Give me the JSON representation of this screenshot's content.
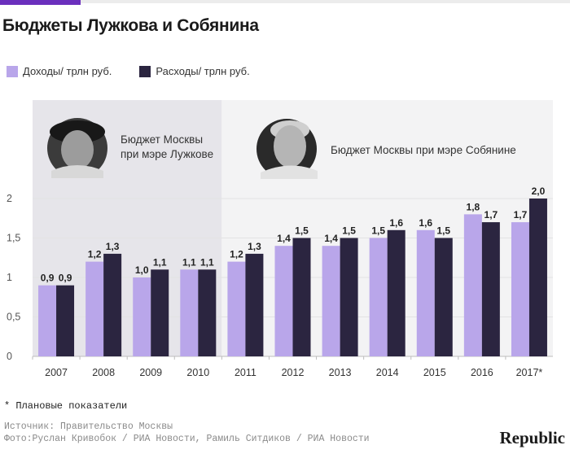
{
  "header": {
    "title": "Бюджеты Лужкова и Собянина"
  },
  "legend": {
    "income_label": "Доходы/ трлн руб.",
    "expense_label": "Расходы/ трлн руб."
  },
  "colors": {
    "income": "#b9a6ea",
    "expense": "#2b2540",
    "accent": "#6b2fbd",
    "panel_luzhkov": "#e6e5ea",
    "panel_sobyanin": "#f3f3f4"
  },
  "chart_data": {
    "type": "bar",
    "title": "Бюджеты Лужкова и Собянина",
    "categories": [
      "2007",
      "2008",
      "2009",
      "2010",
      "2011",
      "2012",
      "2013",
      "2014",
      "2015",
      "2016",
      "2017*"
    ],
    "series": [
      {
        "name": "Доходы/ трлн руб.",
        "values": [
          0.9,
          1.2,
          1.0,
          1.1,
          1.2,
          1.4,
          1.4,
          1.5,
          1.6,
          1.8,
          1.7
        ],
        "labels": [
          "0,9",
          "1,2",
          "1,0",
          "1,1",
          "1,2",
          "1,4",
          "1,4",
          "1,5",
          "1,6",
          "1,8",
          "1,7"
        ]
      },
      {
        "name": "Расходы/ трлн руб.",
        "values": [
          0.9,
          1.3,
          1.1,
          1.1,
          1.3,
          1.5,
          1.5,
          1.6,
          1.5,
          1.7,
          2.0
        ],
        "labels": [
          "0,9",
          "1,3",
          "1,1",
          "1,1",
          "1,3",
          "1,5",
          "1,5",
          "1,6",
          "1,5",
          "1,7",
          "2,0"
        ]
      }
    ],
    "ylim": [
      0,
      2
    ],
    "yticks": [
      {
        "value": 0,
        "label": "0"
      },
      {
        "value": 0.5,
        "label": "0,5"
      },
      {
        "value": 1,
        "label": "1"
      },
      {
        "value": 1.5,
        "label": "1,5"
      },
      {
        "value": 2,
        "label": "2"
      }
    ],
    "grid": true,
    "legend_position": "top-left",
    "annotations": {
      "luzhkov_period": {
        "categories": [
          "2007",
          "2008",
          "2009",
          "2010"
        ],
        "line1": "Бюджет Москвы",
        "line2": "при мэре Лужкове"
      },
      "sobyanin_period": {
        "categories": [
          "2011",
          "2012",
          "2013",
          "2014",
          "2015",
          "2016",
          "2017*"
        ],
        "line1": "Бюджет Москвы при мэре Собянине"
      }
    }
  },
  "footer": {
    "footnote": "* Плановые показатели",
    "source_line": "Источник: Правительство Москвы",
    "photo_line": "Фото:Руслан Кривобок / РИА Новости, Рамиль Ситдиков / РИА Новости",
    "brand": "Republic"
  }
}
